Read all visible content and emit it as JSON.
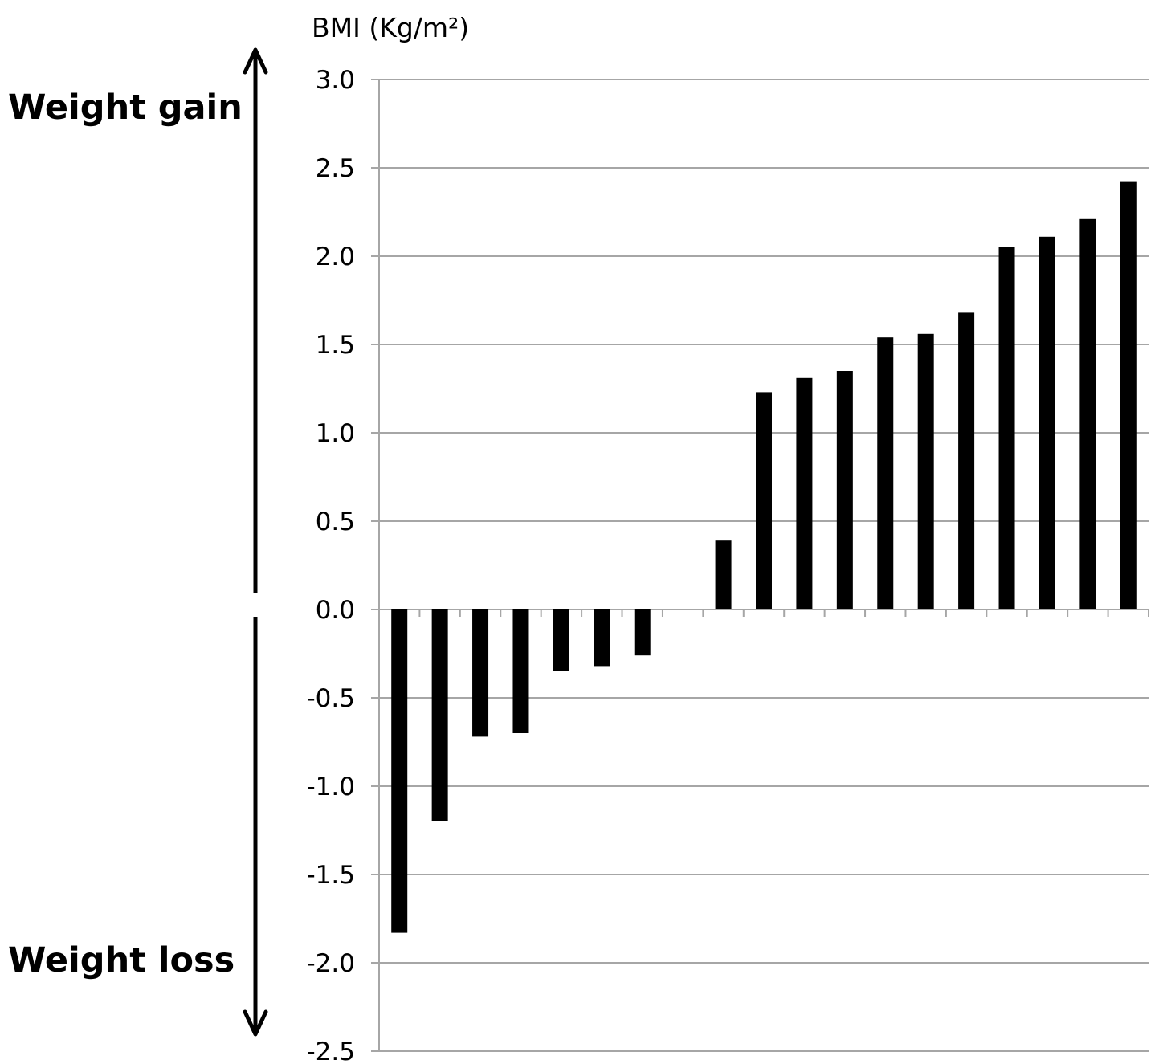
{
  "chart_data": {
    "type": "bar",
    "ylabel": "BMI (Kg/m²)",
    "ylim": [
      -2.5,
      3.0
    ],
    "yticks": [
      3.0,
      2.5,
      2.0,
      1.5,
      1.0,
      0.5,
      0.0,
      -0.5,
      -1.0,
      -1.5,
      -2.0,
      -2.5
    ],
    "ytick_labels": [
      "3.0",
      "2.5",
      "2.0",
      "1.5",
      "1.0",
      "0.5",
      "0.0",
      "-0.5",
      "-1.0",
      "-1.5",
      "-2.0",
      "-2.5"
    ],
    "grid": true,
    "bar_color": "#000000",
    "grid_color": "#a6a6a6",
    "series": [
      {
        "values": [
          -1.83,
          -1.2,
          -0.72,
          -0.7,
          -0.35,
          -0.32,
          -0.26,
          0.0,
          0.39,
          1.23,
          1.31,
          1.35,
          1.54,
          1.56,
          1.68,
          2.05,
          2.11,
          2.21,
          2.42
        ]
      }
    ],
    "annotations": {
      "top": "Weight gain",
      "bottom": "Weight loss",
      "arrow": "double-headed vertical"
    }
  }
}
